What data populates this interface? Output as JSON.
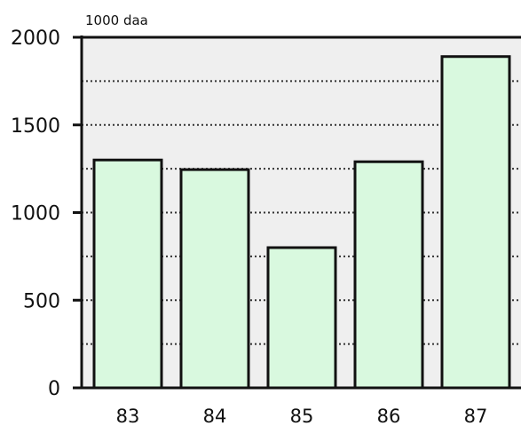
{
  "chart_data": {
    "type": "bar",
    "categories": [
      "83",
      "84",
      "85",
      "86",
      "87"
    ],
    "values": [
      1300,
      1245,
      800,
      1290,
      1890
    ],
    "yunit": "1000 daa",
    "ylim": [
      0,
      2000
    ],
    "yticks": [
      0,
      500,
      1000,
      1500,
      2000
    ],
    "ytick_labels": [
      "0",
      "500",
      "1000",
      "1500",
      "2000"
    ],
    "grid": true,
    "colors": {
      "bar_fill": "#d9f9df",
      "bar_stroke": "#111111",
      "plot_background": "#efefef",
      "gridline": "#333333"
    }
  }
}
